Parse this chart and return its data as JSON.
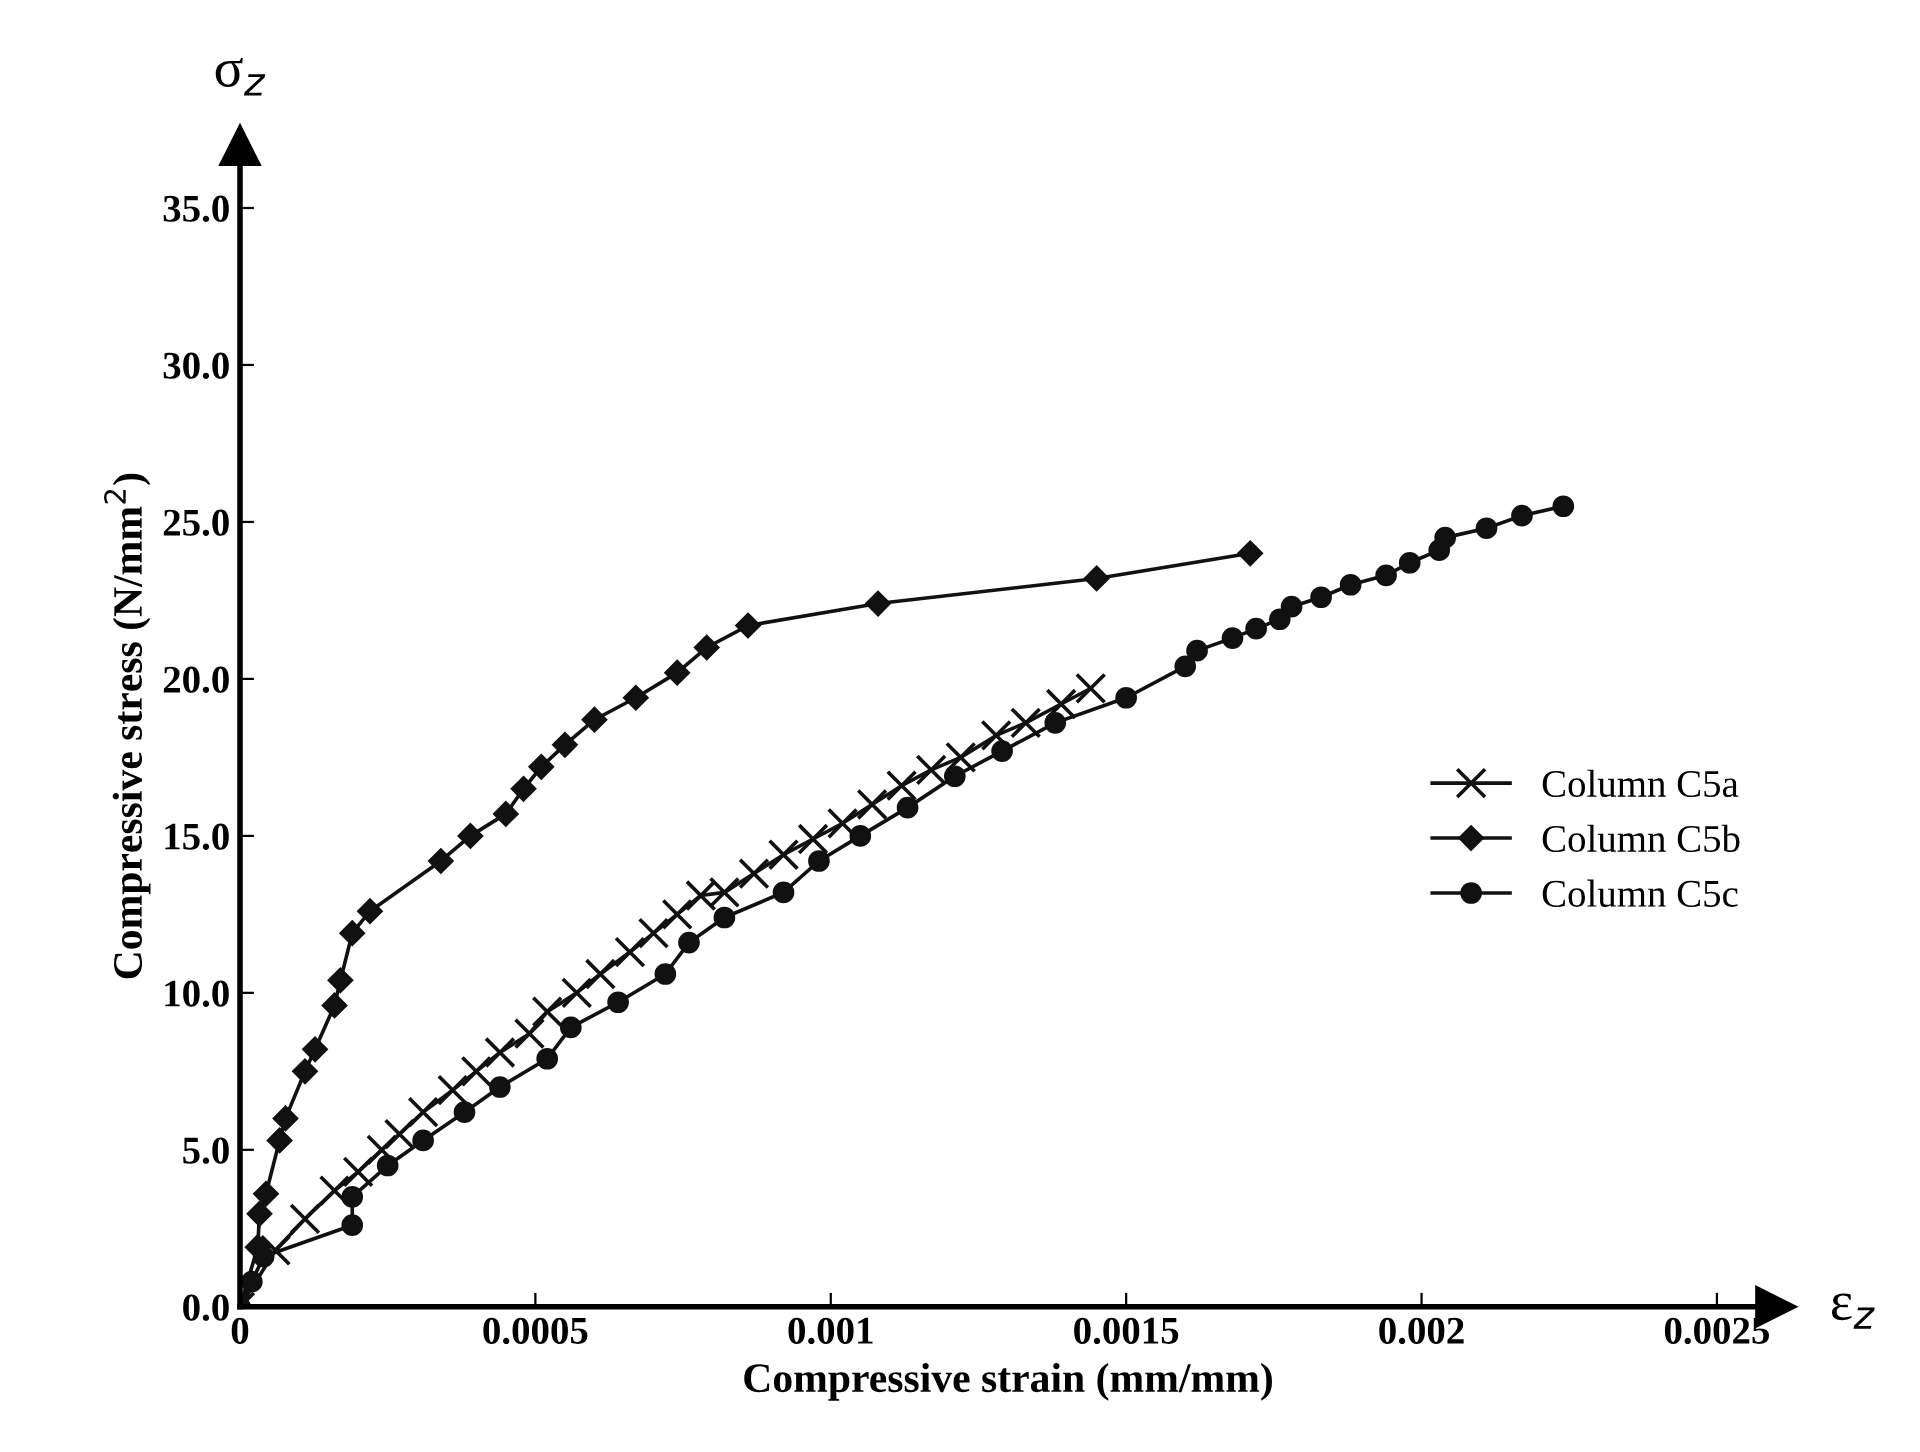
{
  "chart_data": {
    "type": "line",
    "xlabel": "Compressive strain (mm/mm)",
    "ylabel": "Compressive stress (N/mm$^{2}$)",
    "annotations": [
      "σ$_{z}$",
      "ε$_{z}$"
    ],
    "xlim": [
      0,
      0.0026
    ],
    "ylim": [
      0,
      37
    ],
    "xticks": [
      0,
      0.0005,
      0.001,
      0.0015,
      0.002,
      0.0025
    ],
    "yticks": [
      {
        "value": 0,
        "label": "0.0"
      },
      {
        "value": 5,
        "label": "5.0"
      },
      {
        "value": 10,
        "label": "10.0"
      },
      {
        "value": 15,
        "label": "15.0"
      },
      {
        "value": 20,
        "label": "20.0"
      },
      {
        "value": 25,
        "label": "25.0"
      },
      {
        "value": 30,
        "label": "30.0"
      },
      {
        "value": 35,
        "label": "35.0"
      }
    ],
    "grid": false,
    "legend": "right",
    "line_style": "solid",
    "series": [
      {
        "name": "Column C5a",
        "color": "#111111",
        "marker": "cross",
        "x": [
          0,
          6e-05,
          0.00011,
          0.00016,
          0.0002,
          0.00024,
          0.00027,
          0.00031,
          0.00036,
          0.0004,
          0.00044,
          0.00049,
          0.00052,
          0.00057,
          0.00061,
          0.00066,
          0.0007,
          0.00074,
          0.00078,
          0.00082,
          0.00087,
          0.00092,
          0.00097,
          0.00102,
          0.00107,
          0.00112,
          0.00117,
          0.00122,
          0.00128,
          0.00133,
          0.00139,
          0.00144
        ],
        "values": [
          0,
          1.8,
          2.8,
          3.7,
          4.3,
          5.0,
          5.5,
          6.2,
          6.9,
          7.5,
          8.1,
          8.7,
          9.4,
          10.0,
          10.6,
          11.3,
          11.9,
          12.5,
          13.1,
          13.2,
          13.8,
          14.4,
          14.9,
          15.4,
          16.0,
          16.6,
          17.1,
          17.5,
          18.2,
          18.6,
          19.2,
          19.7
        ]
      },
      {
        "name": "Column C5b",
        "color": "#111111",
        "marker": "diamond",
        "x": [
          0,
          3e-05,
          3.3e-05,
          4.4e-05,
          6.7e-05,
          7.7e-05,
          0.00011,
          0.000127,
          0.00016,
          0.00017,
          0.00019,
          0.00022,
          0.00034,
          0.00039,
          0.00045,
          0.00048,
          0.00051,
          0.00055,
          0.0006,
          0.00067,
          0.00074,
          0.00079,
          0.00086,
          0.00108,
          0.00145,
          0.00171
        ],
        "values": [
          0,
          1.9,
          2.96,
          3.6,
          5.3,
          6.0,
          7.5,
          8.2,
          9.6,
          10.4,
          11.9,
          12.6,
          14.2,
          15.0,
          15.7,
          16.5,
          17.2,
          17.9,
          18.7,
          19.4,
          20.2,
          21.0,
          21.7,
          22.4,
          23.2,
          24.0
        ]
      },
      {
        "name": "Column C5c",
        "color": "#111111",
        "marker": "circle",
        "x": [
          0,
          2e-05,
          4e-05,
          0.00019,
          0.00019,
          0.00025,
          0.00031,
          0.00038,
          0.00044,
          0.00052,
          0.00056,
          0.00064,
          0.00072,
          0.00076,
          0.00082,
          0.00092,
          0.00098,
          0.00105,
          0.00113,
          0.00121,
          0.00129,
          0.00138,
          0.0015,
          0.0016,
          0.00162,
          0.00168,
          0.00172,
          0.00176,
          0.00178,
          0.00183,
          0.00188,
          0.00194,
          0.00198,
          0.00203,
          0.00204,
          0.00211,
          0.00217,
          0.00224
        ],
        "values": [
          0,
          0.8,
          1.6,
          2.6,
          3.5,
          4.5,
          5.3,
          6.2,
          7.0,
          7.9,
          8.9,
          9.7,
          10.6,
          11.6,
          12.4,
          13.2,
          14.2,
          15.0,
          15.9,
          16.9,
          17.7,
          18.6,
          19.4,
          20.4,
          20.9,
          21.3,
          21.6,
          21.9,
          22.3,
          22.6,
          23.0,
          23.3,
          23.7,
          24.1,
          24.5,
          24.8,
          25.2,
          25.5
        ]
      }
    ]
  }
}
